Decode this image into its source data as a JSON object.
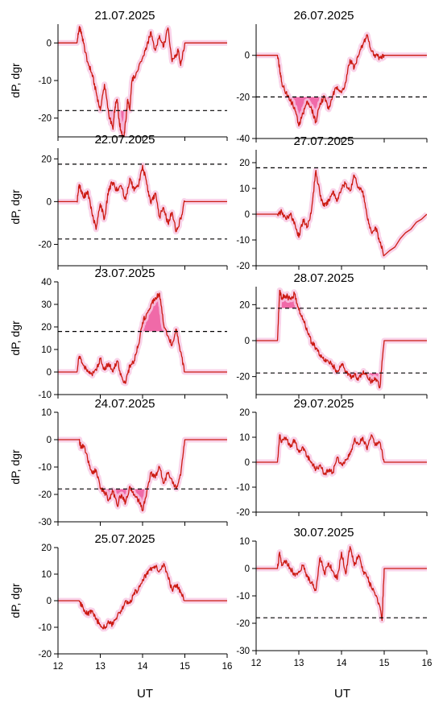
{
  "figure": {
    "ylabel": "dP, dgr",
    "xlabel": "UT",
    "xticks": [
      12,
      13,
      14,
      15,
      16
    ]
  },
  "style": {
    "trace_color": "#cc1a12",
    "fill_color": "#f06aa8",
    "halo_color": "#f8c8e4",
    "threshold_color": "#000000"
  },
  "chart_data": [
    {
      "type": "line",
      "title": "21.07.2025",
      "ylabel": "dP, dgr",
      "xlim": [
        12,
        16
      ],
      "ylim": [
        -25,
        5
      ],
      "yticks": [
        0,
        -10,
        -20
      ],
      "threshold": [
        -18
      ],
      "fill_beyond_threshold": true,
      "series": [
        {
          "x": [
            12.0,
            12.45,
            12.5,
            12.55,
            12.6,
            12.7,
            12.8,
            12.9,
            13.0,
            13.1,
            13.2,
            13.3,
            13.35,
            13.4,
            13.45,
            13.5,
            13.55,
            13.6,
            13.65,
            13.7,
            13.75,
            13.8,
            13.9,
            14.0,
            14.1,
            14.2,
            14.3,
            14.4,
            14.5,
            14.6,
            14.7,
            14.8,
            14.85,
            14.9,
            15.0,
            16.0
          ],
          "y": [
            0,
            0,
            4,
            3,
            0,
            -5,
            -8,
            -13,
            -18,
            -11,
            -19,
            -23,
            -17,
            -15,
            -21,
            -24,
            -26,
            -21,
            -15,
            -18,
            -10,
            -9,
            -7,
            -4,
            -1,
            3,
            -2,
            2,
            -1,
            4,
            -5,
            -3,
            -2,
            -6,
            0,
            0
          ]
        }
      ]
    },
    {
      "type": "line",
      "title": "26.07.2025",
      "ylabel": "",
      "xlim": [
        12,
        16
      ],
      "ylim": [
        -40,
        15
      ],
      "yticks": [
        0,
        -20,
        -40
      ],
      "threshold": [
        -20
      ],
      "fill_beyond_threshold": true,
      "series": [
        {
          "x": [
            12.0,
            12.5,
            12.55,
            12.6,
            12.7,
            12.8,
            12.9,
            13.0,
            13.1,
            13.2,
            13.3,
            13.4,
            13.5,
            13.6,
            13.7,
            13.8,
            13.9,
            14.0,
            14.1,
            14.2,
            14.3,
            14.4,
            14.5,
            14.6,
            14.7,
            14.8,
            14.9,
            15.0,
            16.0
          ],
          "y": [
            0,
            0,
            -6,
            -13,
            -18,
            -22,
            -25,
            -34,
            -28,
            -22,
            -26,
            -32,
            -23,
            -20,
            -26,
            -19,
            -15,
            -18,
            -13,
            -2,
            -6,
            0,
            5,
            10,
            2,
            0,
            -1,
            0,
            0
          ]
        }
      ]
    },
    {
      "type": "line",
      "title": "22.07.2025",
      "ylabel": "dP, dgr",
      "xlim": [
        12,
        16
      ],
      "ylim": [
        -30,
        25
      ],
      "yticks": [
        20,
        0,
        -20
      ],
      "threshold": [
        17.5,
        -17.5
      ],
      "fill_beyond_threshold": true,
      "series": [
        {
          "x": [
            12.0,
            12.45,
            12.5,
            12.6,
            12.7,
            12.8,
            12.9,
            13.0,
            13.1,
            13.2,
            13.3,
            13.4,
            13.5,
            13.6,
            13.7,
            13.8,
            13.9,
            14.0,
            14.1,
            14.2,
            14.3,
            14.4,
            14.5,
            14.6,
            14.7,
            14.8,
            14.9,
            15.0,
            16.0
          ],
          "y": [
            0,
            0,
            8,
            2,
            5,
            -5,
            -13,
            -1,
            -8,
            6,
            9,
            5,
            7,
            1,
            11,
            5,
            7,
            17,
            8,
            -1,
            4,
            -7,
            -3,
            -10,
            -5,
            -14,
            -8,
            0,
            0
          ]
        }
      ]
    },
    {
      "type": "line",
      "title": "27.07.2025",
      "ylabel": "",
      "xlim": [
        12,
        16
      ],
      "ylim": [
        -20,
        25
      ],
      "yticks": [
        20,
        10,
        0,
        -10,
        -20
      ],
      "threshold": [
        18
      ],
      "fill_beyond_threshold": true,
      "series": [
        {
          "x": [
            12.0,
            12.5,
            12.6,
            12.7,
            12.8,
            12.9,
            13.0,
            13.1,
            13.2,
            13.3,
            13.4,
            13.5,
            13.6,
            13.7,
            13.8,
            13.9,
            14.0,
            14.1,
            14.2,
            14.3,
            14.4,
            14.5,
            14.6,
            14.7,
            14.8,
            14.9,
            15.0,
            16.0
          ],
          "y": [
            0,
            0,
            1,
            -2,
            0,
            -3,
            -9,
            -2,
            -5,
            2,
            17,
            7,
            3,
            5,
            9,
            5,
            10,
            12,
            9,
            15,
            10,
            9,
            -1,
            -7,
            -5,
            -11,
            -16,
            0
          ]
        }
      ]
    },
    {
      "type": "line",
      "title": "23.07.2025",
      "ylabel": "dP, dgr",
      "xlim": [
        12,
        16
      ],
      "ylim": [
        -10,
        40
      ],
      "yticks": [
        40,
        30,
        20,
        10,
        0,
        -10
      ],
      "threshold": [
        18
      ],
      "fill_beyond_threshold": true,
      "series": [
        {
          "x": [
            12.0,
            12.45,
            12.5,
            12.6,
            12.7,
            12.8,
            12.9,
            13.0,
            13.1,
            13.2,
            13.3,
            13.4,
            13.5,
            13.6,
            13.7,
            13.8,
            13.9,
            14.0,
            14.1,
            14.2,
            14.3,
            14.4,
            14.5,
            14.6,
            14.7,
            14.8,
            14.9,
            15.0,
            16.0
          ],
          "y": [
            0,
            0,
            7,
            3,
            1,
            -1,
            1,
            6,
            1,
            4,
            0,
            5,
            -2,
            -5,
            3,
            5,
            12,
            22,
            26,
            30,
            33,
            35,
            21,
            16,
            12,
            19,
            9,
            0,
            0
          ]
        }
      ]
    },
    {
      "type": "line",
      "title": "28.07.2025",
      "ylabel": "",
      "xlim": [
        12,
        16
      ],
      "ylim": [
        -30,
        30
      ],
      "yticks": [
        20,
        0,
        -20
      ],
      "threshold": [
        18,
        -18
      ],
      "fill_beyond_threshold": true,
      "series": [
        {
          "x": [
            12.0,
            12.5,
            12.55,
            12.6,
            12.7,
            12.8,
            12.9,
            13.0,
            13.1,
            13.2,
            13.3,
            13.4,
            13.5,
            13.6,
            13.7,
            13.8,
            13.9,
            14.0,
            14.1,
            14.2,
            14.3,
            14.4,
            14.5,
            14.6,
            14.7,
            14.8,
            14.9,
            15.0,
            16.0
          ],
          "y": [
            0,
            0,
            28,
            24,
            25,
            23,
            26,
            17,
            12,
            5,
            -1,
            -4,
            -8,
            -11,
            -12,
            -14,
            -17,
            -13,
            -17,
            -20,
            -19,
            -21,
            -18,
            -20,
            -23,
            -21,
            -26,
            0,
            0
          ]
        }
      ]
    },
    {
      "type": "line",
      "title": "24.07.2025",
      "ylabel": "dP, dgr",
      "xlim": [
        12,
        16
      ],
      "ylim": [
        -30,
        10
      ],
      "yticks": [
        10,
        0,
        -10,
        -20,
        -30
      ],
      "threshold": [
        -18
      ],
      "fill_beyond_threshold": true,
      "series": [
        {
          "x": [
            12.0,
            12.5,
            12.55,
            12.6,
            12.7,
            12.8,
            12.9,
            13.0,
            13.1,
            13.2,
            13.3,
            13.4,
            13.5,
            13.6,
            13.7,
            13.8,
            13.9,
            14.0,
            14.1,
            14.2,
            14.3,
            14.4,
            14.5,
            14.6,
            14.7,
            14.8,
            14.9,
            15.0,
            16.0
          ],
          "y": [
            0,
            0,
            -3,
            -2,
            -7,
            -12,
            -11,
            -18,
            -19,
            -22,
            -19,
            -24,
            -20,
            -23,
            -17,
            -20,
            -22,
            -26,
            -19,
            -12,
            -14,
            -10,
            -16,
            -12,
            -15,
            -18,
            -13,
            0,
            0
          ]
        }
      ]
    },
    {
      "type": "line",
      "title": "29.07.2025",
      "ylabel": "",
      "xlim": [
        12,
        16
      ],
      "ylim": [
        -20,
        20
      ],
      "yticks": [
        20,
        10,
        0,
        -10,
        -20
      ],
      "threshold": [],
      "fill_beyond_threshold": false,
      "series": [
        {
          "x": [
            12.0,
            12.5,
            12.55,
            12.6,
            12.7,
            12.8,
            12.9,
            13.0,
            13.1,
            13.2,
            13.3,
            13.4,
            13.5,
            13.6,
            13.7,
            13.8,
            13.9,
            14.0,
            14.1,
            14.2,
            14.3,
            14.4,
            14.5,
            14.6,
            14.7,
            14.8,
            14.9,
            15.0,
            16.0
          ],
          "y": [
            0,
            0,
            11,
            8,
            10,
            6,
            9,
            4,
            6,
            2,
            0,
            -3,
            -1,
            -5,
            -3,
            -4,
            2,
            -1,
            1,
            3,
            9,
            7,
            10,
            5,
            11,
            7,
            8,
            0,
            0
          ]
        }
      ]
    },
    {
      "type": "line",
      "title": "25.07.2025",
      "ylabel": "dP, dgr",
      "xlim": [
        12,
        16
      ],
      "ylim": [
        -20,
        20
      ],
      "yticks": [
        20,
        10,
        0,
        -10,
        -20
      ],
      "threshold": [],
      "fill_beyond_threshold": false,
      "series": [
        {
          "x": [
            12.0,
            12.5,
            12.6,
            12.7,
            12.8,
            12.9,
            13.0,
            13.1,
            13.2,
            13.3,
            13.4,
            13.5,
            13.6,
            13.7,
            13.8,
            13.9,
            14.0,
            14.1,
            14.2,
            14.3,
            14.4,
            14.5,
            14.6,
            14.7,
            14.8,
            14.9,
            15.0,
            16.0
          ],
          "y": [
            0,
            0,
            -3,
            -5,
            -4,
            -7,
            -9,
            -10,
            -8,
            -9,
            -6,
            -4,
            0,
            -1,
            3,
            4,
            8,
            10,
            12,
            13,
            11,
            14,
            9,
            4,
            6,
            3,
            0,
            0
          ]
        }
      ]
    },
    {
      "type": "line",
      "title": "30.07.2025",
      "ylabel": "",
      "xlim": [
        12,
        16
      ],
      "ylim": [
        -30,
        10
      ],
      "yticks": [
        10,
        0,
        -10,
        -20,
        -30
      ],
      "threshold": [
        -18
      ],
      "fill_beyond_threshold": true,
      "series": [
        {
          "x": [
            12.0,
            12.5,
            12.55,
            12.6,
            12.7,
            12.8,
            12.9,
            13.0,
            13.1,
            13.2,
            13.3,
            13.4,
            13.5,
            13.6,
            13.7,
            13.8,
            13.9,
            14.0,
            14.1,
            14.2,
            14.3,
            14.4,
            14.5,
            14.6,
            14.7,
            14.8,
            14.9,
            14.95,
            15.0,
            16.0
          ],
          "y": [
            0,
            0,
            6,
            1,
            3,
            0,
            -2,
            -1,
            1,
            -3,
            -5,
            -8,
            4,
            -2,
            2,
            -1,
            -4,
            6,
            -2,
            8,
            1,
            5,
            -1,
            -3,
            -7,
            -10,
            -14,
            -19,
            0,
            0
          ]
        }
      ]
    }
  ]
}
